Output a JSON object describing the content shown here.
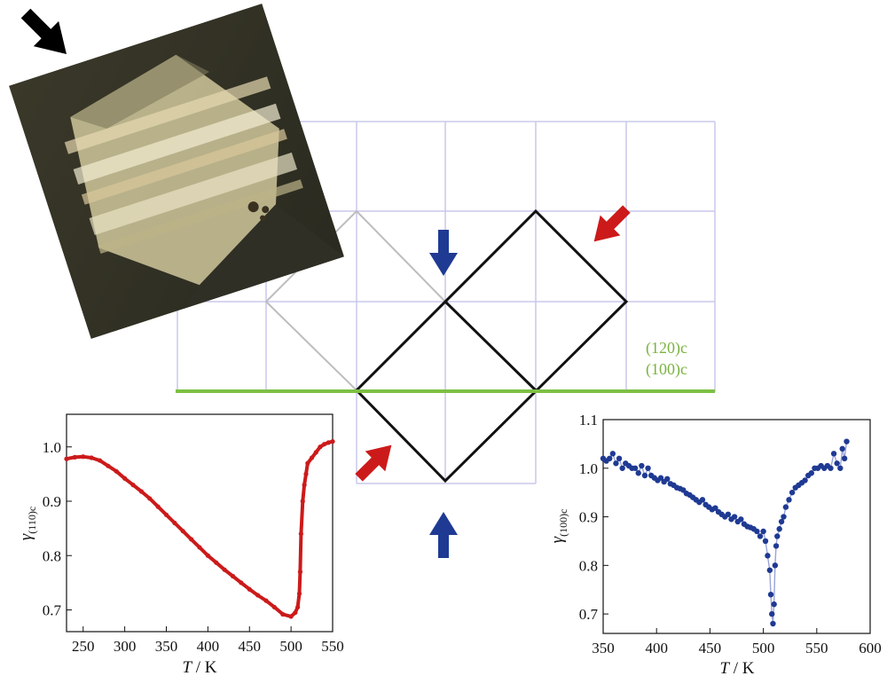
{
  "colors": {
    "grid": "#c8c8ec",
    "green_line": "#7cc043",
    "gray_square": "#bdbdbd",
    "black_square": "#111111",
    "red": "#cc1a1a",
    "blue": "#1f3a93",
    "black_arrow": "#000000"
  },
  "diagram": {
    "plane_label_1": "(120)c",
    "plane_label_2": "(100)c"
  },
  "photo": {
    "icon": "crystal-micrograph-photo"
  },
  "chart_data": [
    {
      "type": "line",
      "xlabel_var": "T",
      "xlabel_unit": " / K",
      "ylabel_var": "γ",
      "ylabel_sub": "(110)c",
      "xlim": [
        230,
        550
      ],
      "ylim": [
        0.66,
        1.06
      ],
      "xticks": [
        250,
        300,
        350,
        400,
        450,
        500,
        550
      ],
      "yticks": [
        0.7,
        0.8,
        0.9,
        1.0
      ],
      "ytick_labels": [
        "0.7",
        "0.8",
        "0.9",
        "1.0"
      ],
      "series": [
        {
          "color": "#cc1a1a",
          "x": [
            230,
            240,
            250,
            260,
            270,
            280,
            290,
            300,
            310,
            320,
            330,
            340,
            350,
            360,
            370,
            380,
            390,
            400,
            410,
            420,
            430,
            440,
            450,
            460,
            470,
            480,
            490,
            500,
            505,
            508,
            510,
            511,
            512,
            514,
            516,
            518,
            520,
            525,
            530,
            535,
            540,
            545,
            550
          ],
          "y": [
            0.978,
            0.981,
            0.982,
            0.98,
            0.975,
            0.965,
            0.955,
            0.942,
            0.93,
            0.918,
            0.905,
            0.89,
            0.875,
            0.86,
            0.845,
            0.83,
            0.815,
            0.8,
            0.787,
            0.774,
            0.762,
            0.75,
            0.738,
            0.727,
            0.717,
            0.705,
            0.692,
            0.688,
            0.695,
            0.705,
            0.73,
            0.77,
            0.84,
            0.9,
            0.93,
            0.95,
            0.97,
            0.98,
            0.99,
            1.0,
            1.005,
            1.008,
            1.01
          ]
        }
      ]
    },
    {
      "type": "scatter",
      "xlabel_var": "T",
      "xlabel_unit": " / K",
      "ylabel_var": "γ",
      "ylabel_sub": "(100)c",
      "xlim": [
        350,
        600
      ],
      "ylim": [
        0.66,
        1.1
      ],
      "xticks": [
        350,
        400,
        450,
        500,
        550,
        600
      ],
      "yticks": [
        0.7,
        0.8,
        0.9,
        1.0,
        1.1
      ],
      "ytick_labels": [
        "0.7",
        "0.8",
        "0.9",
        "1.0",
        "1.1"
      ],
      "series": [
        {
          "color": "#1f3a93",
          "x": [
            350,
            353,
            356,
            359,
            362,
            365,
            368,
            371,
            374,
            377,
            380,
            383,
            386,
            389,
            392,
            395,
            398,
            401,
            404,
            407,
            410,
            413,
            416,
            419,
            422,
            425,
            428,
            431,
            434,
            437,
            440,
            443,
            446,
            449,
            452,
            455,
            458,
            461,
            464,
            467,
            470,
            473,
            476,
            479,
            482,
            485,
            488,
            491,
            494,
            497,
            500,
            502,
            504,
            506,
            507,
            508,
            509,
            510,
            511,
            512,
            513,
            515,
            517,
            519,
            521,
            524,
            527,
            530,
            533,
            536,
            539,
            542,
            545,
            548,
            551,
            554,
            557,
            560,
            563,
            566,
            569,
            572,
            574,
            576,
            578
          ],
          "y": [
            1.02,
            1.015,
            1.02,
            1.03,
            1.01,
            1.02,
            1.0,
            1.01,
            1.005,
            1.0,
            1.0,
            0.99,
            1.005,
            0.985,
            1.0,
            0.985,
            0.98,
            0.975,
            0.98,
            0.972,
            0.978,
            0.968,
            0.965,
            0.96,
            0.958,
            0.955,
            0.948,
            0.945,
            0.94,
            0.935,
            0.93,
            0.935,
            0.925,
            0.92,
            0.915,
            0.918,
            0.91,
            0.905,
            0.9,
            0.905,
            0.895,
            0.9,
            0.89,
            0.895,
            0.885,
            0.88,
            0.878,
            0.875,
            0.87,
            0.86,
            0.87,
            0.85,
            0.82,
            0.79,
            0.74,
            0.7,
            0.68,
            0.72,
            0.8,
            0.84,
            0.86,
            0.875,
            0.89,
            0.9,
            0.92,
            0.935,
            0.95,
            0.96,
            0.965,
            0.97,
            0.975,
            0.985,
            0.99,
            1.0,
            1.0,
            1.005,
            1.0,
            1.005,
            1.0,
            1.03,
            1.01,
            1.0,
            1.04,
            1.02,
            1.055
          ]
        }
      ]
    }
  ]
}
